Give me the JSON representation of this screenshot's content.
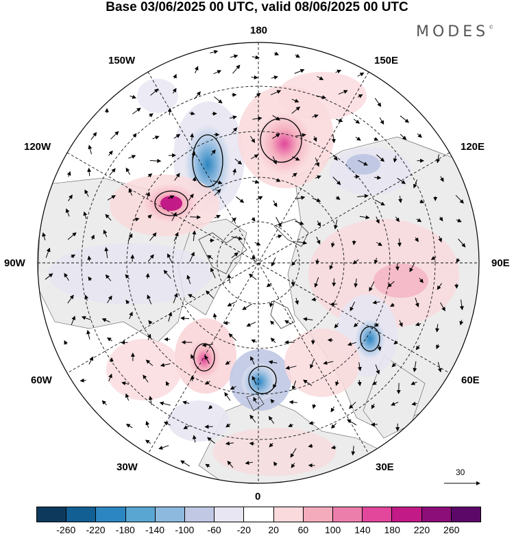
{
  "title": "Base 03/06/2025 00 UTC, valid 08/06/2025 00 UTC",
  "brand": "MODES",
  "brand_mark": "©",
  "longitude_labels": {
    "top": "180",
    "bottom": "0",
    "left": "90W",
    "right": "90E",
    "upper_left_1": "150W",
    "upper_left_2": "120W",
    "upper_right_1": "150E",
    "upper_right_2": "120E",
    "lower_left_1": "60W",
    "lower_left_2": "30W",
    "lower_right_1": "60E",
    "lower_right_2": "30E"
  },
  "vector_scale_label": "30",
  "colorbar": {
    "ticks": [
      "-260",
      "-220",
      "-180",
      "-140",
      "-100",
      "-60",
      "-20",
      "20",
      "60",
      "100",
      "140",
      "180",
      "220",
      "260"
    ],
    "colors": [
      "#0d3a5c",
      "#125f94",
      "#2c86c1",
      "#5aa6d3",
      "#8db9de",
      "#c0c8e4",
      "#e7e6f2",
      "#ffffff",
      "#fadadd",
      "#f4acbd",
      "#ec7eab",
      "#e2479c",
      "#c21a86",
      "#8c0e78",
      "#5b0868"
    ]
  },
  "map_colors": {
    "land_mask": "#ececec",
    "coast": "#333333",
    "graticule": "#111111"
  }
}
